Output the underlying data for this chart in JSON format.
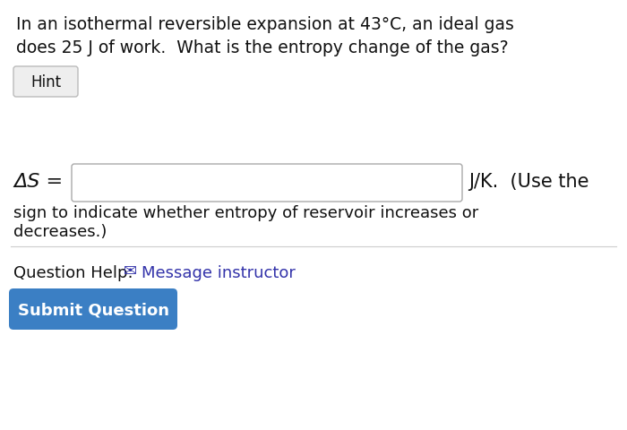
{
  "bg_color": "#ffffff",
  "question_text_line1": "In an isothermal reversible expansion at 43°C, an ideal gas",
  "question_text_line2": "does 25 J of work.  What is the entropy change of the gas?",
  "hint_label": "Hint",
  "delta_s_label": "ΔS =",
  "jk_label": "J/K.  (Use the",
  "sign_text": "sign to indicate whether entropy of reservoir increases or",
  "decreases_text": "decreases.)",
  "question_help_prefix": "Question Help:",
  "message_link": "Message instructor",
  "submit_label": "Submit Question",
  "hint_box_color": "#eeeeee",
  "hint_border_color": "#bbbbbb",
  "input_box_border": "#aaaaaa",
  "submit_bg": "#3b7fc4",
  "submit_text_color": "#ffffff",
  "link_color": "#3333aa",
  "text_color": "#111111",
  "separator_color": "#cccccc",
  "font_size_question": 13.5,
  "font_size_hint": 12,
  "font_size_formula": 15,
  "font_size_body": 13,
  "font_size_submit": 13
}
